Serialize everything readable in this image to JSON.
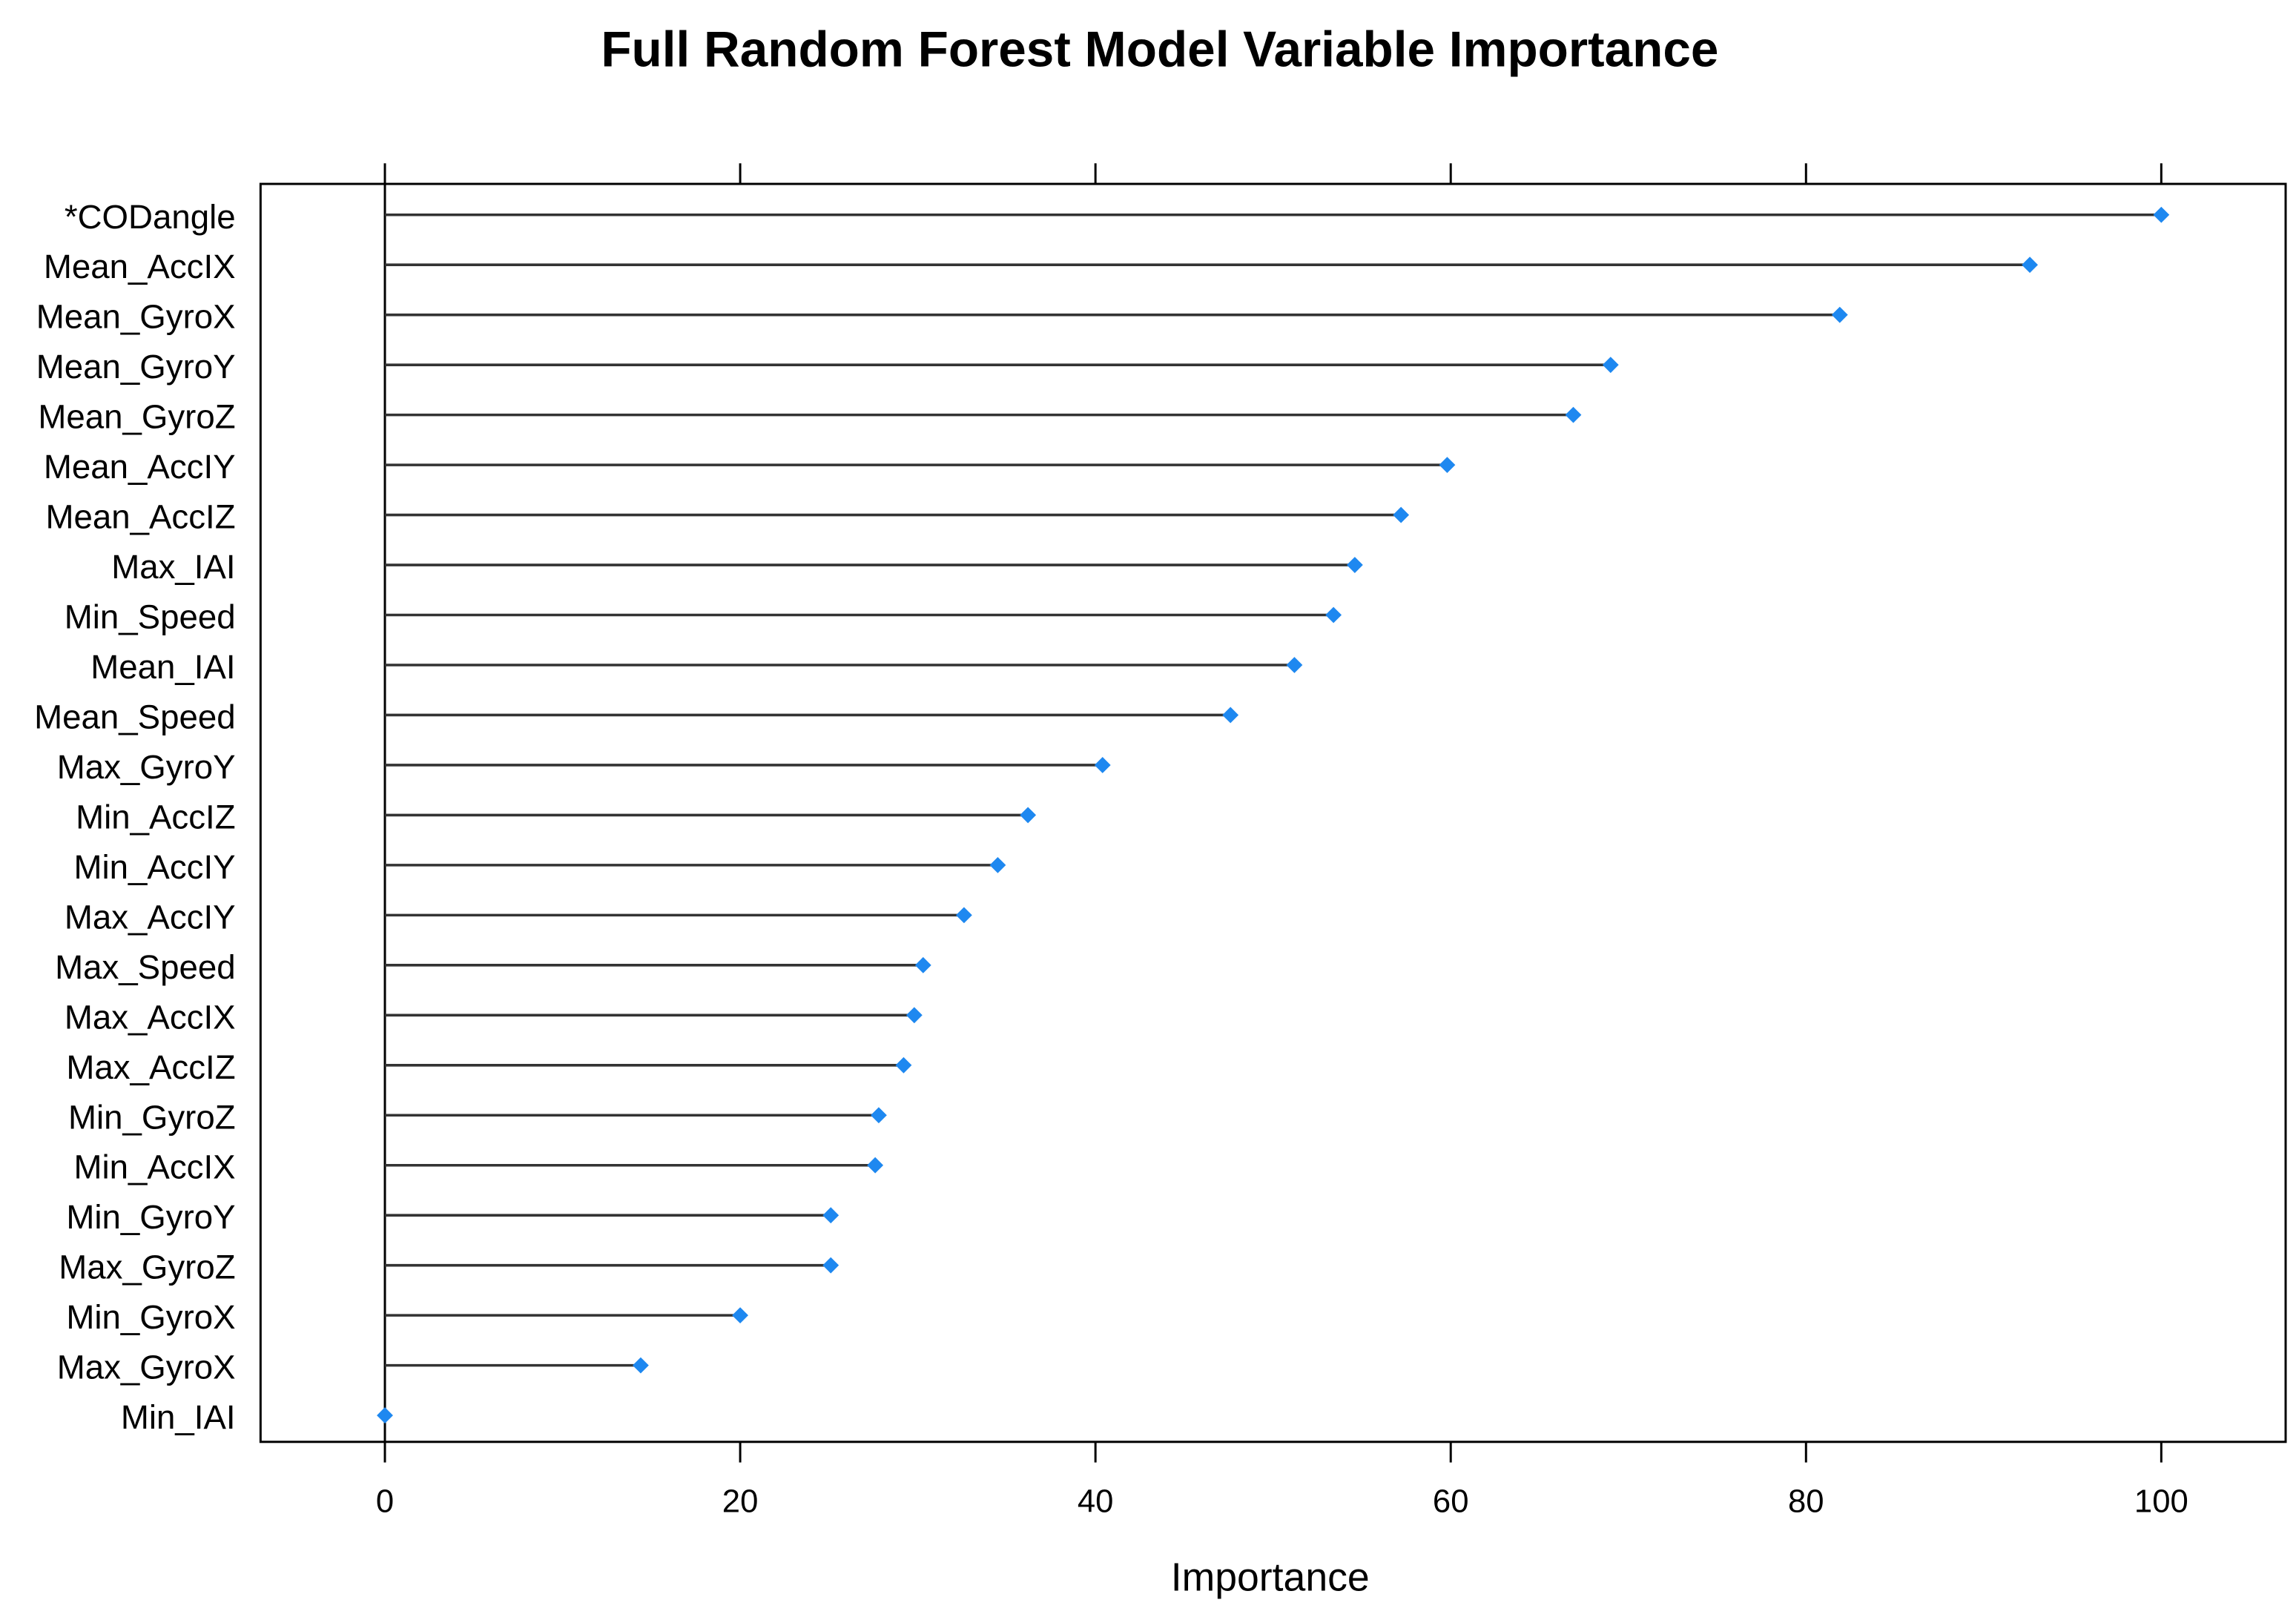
{
  "chart_data": {
    "type": "dotplot",
    "title": "Full Random Forest Model Variable Importance",
    "x_label": "Importance",
    "categories": [
      "*CODangle",
      "Mean_AccIX",
      "Mean_GyroX",
      "Mean_GyroY",
      "Mean_GyroZ",
      "Mean_AccIY",
      "Mean_AccIZ",
      "Max_IAI",
      "Min_Speed",
      "Mean_IAI",
      "Mean_Speed",
      "Max_GyroY",
      "Min_AccIZ",
      "Min_AccIY",
      "Max_AccIY",
      "Max_Speed",
      "Max_AccIX",
      "Max_AccIZ",
      "Min_GyroZ",
      "Min_AccIX",
      "Min_GyroY",
      "Max_GyroZ",
      "Min_GyroX",
      "Max_GyroX",
      "Min_IAI"
    ],
    "values": [
      100,
      92.6,
      81.9,
      69.0,
      66.9,
      59.8,
      57.2,
      54.6,
      53.4,
      51.2,
      47.6,
      40.4,
      36.2,
      34.5,
      32.6,
      30.3,
      29.8,
      29.2,
      27.8,
      27.6,
      25.1,
      25.1,
      20.0,
      14.4,
      0
    ],
    "color": "#1e88f0",
    "xlim": [
      -7,
      107
    ],
    "xticks": [
      0,
      20,
      40,
      60,
      80,
      100
    ]
  }
}
